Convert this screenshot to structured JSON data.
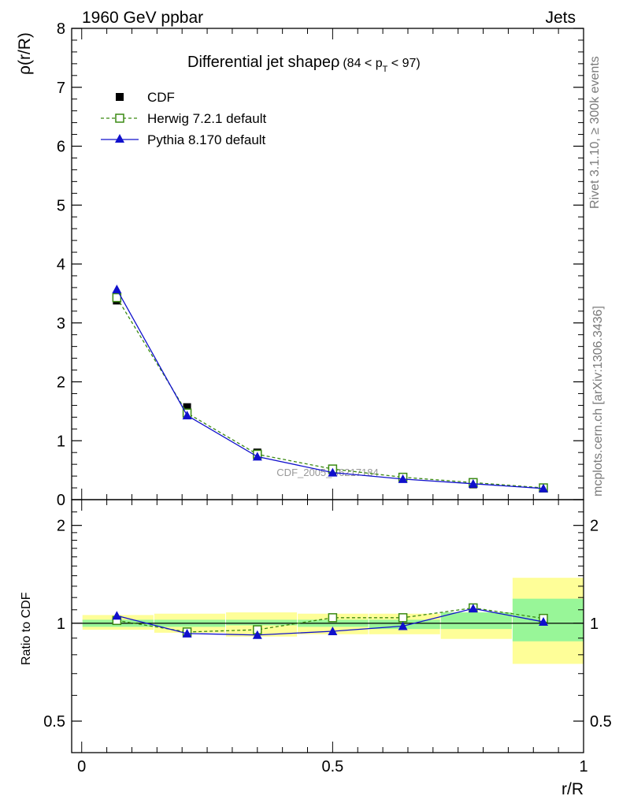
{
  "header": {
    "left": "1960 GeV ppbar",
    "right": "Jets"
  },
  "side_labels": {
    "rivet": "Rivet 3.1.10, ≥ 300k events",
    "mcplots": "mcplots.cern.ch [arXiv:1306.3436]"
  },
  "watermark": "CDF_2005_S6217184",
  "chart_data": [
    {
      "type": "line",
      "panel": "main",
      "title": "Differential jet shapeρ",
      "title_suffix": "(84 < p",
      "title_sub": "T",
      "title_end": " < 97)",
      "ylabel": "ρ(r/R)",
      "xlabel": "",
      "xlim": [
        -0.02,
        1.0
      ],
      "ylim": [
        0,
        8
      ],
      "y_ticks": [
        0,
        1,
        2,
        3,
        4,
        5,
        6,
        7,
        8
      ],
      "y_tick_labels": [
        "0",
        "1",
        "2",
        "3",
        "4",
        "5",
        "6",
        "7",
        "8"
      ],
      "x": [
        0.07,
        0.21,
        0.35,
        0.5,
        0.64,
        0.78,
        0.92
      ],
      "legend_position": "top-left",
      "series": [
        {
          "name": "CDF",
          "color": "#000000",
          "marker": "filled-square",
          "line": "none",
          "values": [
            3.38,
            1.57,
            0.8,
            0.5,
            0.36,
            0.26,
            0.19
          ]
        },
        {
          "name": "Herwig 7.2.1 default",
          "color": "#3a8a12",
          "marker": "open-square",
          "line": "dashed",
          "values": [
            3.43,
            1.47,
            0.77,
            0.52,
            0.38,
            0.29,
            0.2
          ]
        },
        {
          "name": "Pythia 8.170 default",
          "color": "#1010cc",
          "marker": "filled-triangle",
          "line": "solid",
          "values": [
            3.57,
            1.43,
            0.73,
            0.46,
            0.35,
            0.27,
            0.19
          ]
        }
      ]
    },
    {
      "type": "line",
      "panel": "ratio",
      "ylabel": "Ratio to CDF",
      "xlabel": "r/R",
      "xlim": [
        -0.02,
        1.0
      ],
      "ylim": [
        0.4,
        2.4
      ],
      "scale": "log",
      "y_ticks": [
        0.5,
        1,
        2
      ],
      "y_tick_labels": [
        "0.5",
        "1",
        "2"
      ],
      "x_ticks": [
        0,
        0.5,
        1
      ],
      "x_tick_labels": [
        "0",
        "0.5",
        "1"
      ],
      "bins": [
        [
          0.0,
          0.143
        ],
        [
          0.143,
          0.286
        ],
        [
          0.286,
          0.429
        ],
        [
          0.429,
          0.571
        ],
        [
          0.571,
          0.714
        ],
        [
          0.714,
          0.857
        ],
        [
          0.857,
          1.0
        ]
      ],
      "band_stat": [
        [
          0.975,
          1.025
        ],
        [
          0.975,
          1.025
        ],
        [
          0.985,
          1.025
        ],
        [
          0.975,
          1.025
        ],
        [
          0.96,
          1.025
        ],
        [
          0.96,
          1.08
        ],
        [
          0.88,
          1.19
        ]
      ],
      "band_total": [
        [
          0.955,
          1.06
        ],
        [
          0.935,
          1.07
        ],
        [
          0.91,
          1.08
        ],
        [
          0.925,
          1.07
        ],
        [
          0.925,
          1.07
        ],
        [
          0.895,
          1.08
        ],
        [
          0.75,
          1.38
        ]
      ],
      "band_colors": {
        "stat": "#98f698",
        "total": "#fefe98"
      },
      "x": [
        0.07,
        0.21,
        0.35,
        0.5,
        0.64,
        0.78,
        0.92
      ],
      "series": [
        {
          "name": "Herwig 7.2.1 default",
          "color": "#3a8a12",
          "marker": "open-square",
          "line": "dashed",
          "values": [
            1.02,
            0.94,
            0.955,
            1.04,
            1.04,
            1.115,
            1.035
          ]
        },
        {
          "name": "Pythia 8.170 default",
          "color": "#1010cc",
          "marker": "filled-triangle",
          "line": "solid",
          "values": [
            1.055,
            0.93,
            0.92,
            0.945,
            0.98,
            1.11,
            1.01
          ]
        }
      ]
    }
  ]
}
